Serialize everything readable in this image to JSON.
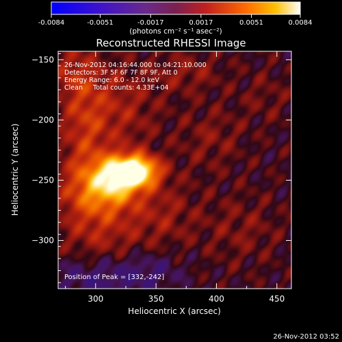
{
  "chart_data": {
    "type": "heatmap",
    "title": "Reconstructed RHESSI Image",
    "xlabel": "Heliocentric X (arcsec)",
    "ylabel": "Heliocentric Y (arcsec)",
    "xlim": [
      269,
      462
    ],
    "ylim": [
      -340,
      -143
    ],
    "xticks": [
      300,
      350,
      400,
      450
    ],
    "yticks": [
      -150,
      -200,
      -250,
      -300
    ],
    "colorbar": {
      "range": [
        -0.0084,
        0.0084
      ],
      "ticks": [
        "-0.0084",
        "-0.0051",
        "-0.0017",
        "0.0017",
        "0.0051",
        "0.0084"
      ],
      "unit_label": "(photons cm⁻² s⁻¹ asec⁻²)"
    },
    "annotations": [
      "26-Nov-2012 04:16:44.000 to 04:21:10.000",
      "Detectors: 3F 5F 6F 7F 8F 9F, Att 0",
      "Energy Range: 6.0 - 12.0 keV",
      "Clean     Total counts: 4.33E+04"
    ],
    "peak_label": "Position of Peak = [332,-242]",
    "peak": {
      "x": 332,
      "y": -242,
      "value": 0.0084
    },
    "sources": [
      {
        "x": 332,
        "y": -242,
        "amp": 0.0084,
        "sx": 14,
        "sy": 9
      },
      {
        "x": 315,
        "y": -250,
        "amp": 0.0048,
        "sx": 16,
        "sy": 14
      },
      {
        "x": 300,
        "y": -262,
        "amp": 0.003,
        "sx": 22,
        "sy": 18
      },
      {
        "x": 290,
        "y": -205,
        "amp": 0.0024,
        "sx": 14,
        "sy": 40
      },
      {
        "x": 320,
        "y": -190,
        "amp": 0.0018,
        "sx": 22,
        "sy": 25
      },
      {
        "x": 305,
        "y": -300,
        "amp": 0.0016,
        "sx": 24,
        "sy": 18
      },
      {
        "x": 355,
        "y": -278,
        "amp": 0.0015,
        "sx": 20,
        "sy": 20
      },
      {
        "x": 375,
        "y": -160,
        "amp": 0.0014,
        "sx": 20,
        "sy": 12
      },
      {
        "x": 395,
        "y": -215,
        "amp": 0.0012,
        "sx": 18,
        "sy": 18
      },
      {
        "x": 280,
        "y": -160,
        "amp": 0.0014,
        "sx": 12,
        "sy": 14
      },
      {
        "x": 420,
        "y": -290,
        "amp": 0.0011,
        "sx": 22,
        "sy": 20
      },
      {
        "x": 440,
        "y": -180,
        "amp": 0.0008,
        "sx": 16,
        "sy": 16
      },
      {
        "x": 300,
        "y": -330,
        "amp": -0.002,
        "sx": 28,
        "sy": 14
      },
      {
        "x": 345,
        "y": -325,
        "amp": -0.0014,
        "sx": 20,
        "sy": 12
      }
    ]
  },
  "timestamp": "26-Nov-2012 03:52"
}
